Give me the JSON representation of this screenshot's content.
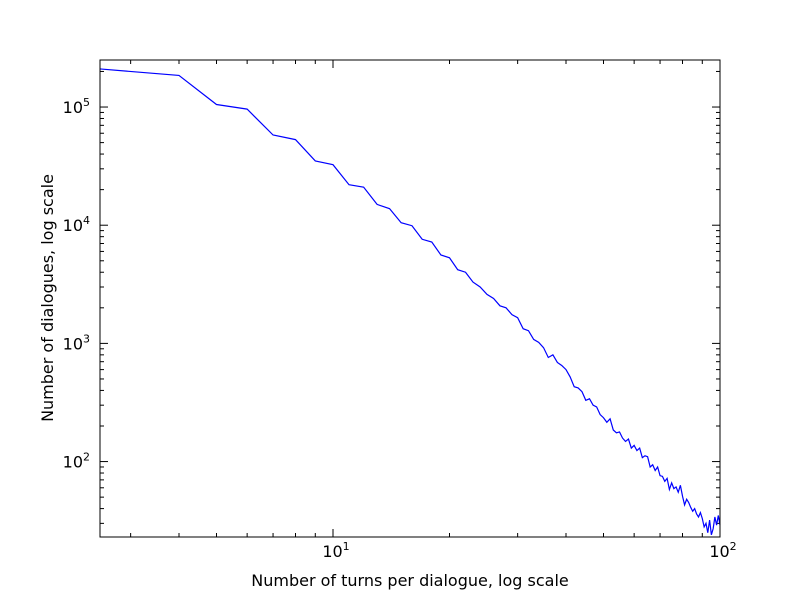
{
  "chart_data": {
    "type": "line",
    "title": "",
    "xlabel": "Number of turns per dialogue, log scale",
    "ylabel": "Number of dialogues, log scale",
    "xscale": "log",
    "yscale": "log",
    "xlim": [
      2.5,
      100
    ],
    "ylim": [
      23,
      250000
    ],
    "grid": false,
    "legend": "none",
    "line_color": "#0000ff",
    "x_ticks": [
      {
        "value": 10,
        "base": "10",
        "exp": "1"
      },
      {
        "value": 100,
        "base": "10",
        "exp": "2"
      }
    ],
    "y_ticks": [
      {
        "value": 100,
        "base": "10",
        "exp": "2"
      },
      {
        "value": 1000,
        "base": "10",
        "exp": "3"
      },
      {
        "value": 10000,
        "base": "10",
        "exp": "4"
      },
      {
        "value": 100000,
        "base": "10",
        "exp": "5"
      }
    ],
    "series": [
      {
        "x": [
          2.5,
          4,
          5,
          6,
          7,
          8,
          9,
          10,
          11,
          12,
          13,
          14,
          15,
          16,
          17,
          18,
          19,
          20,
          21,
          22,
          23,
          24,
          25,
          26,
          27,
          28,
          29,
          30,
          31,
          32,
          33,
          34,
          35,
          36,
          37,
          38,
          39,
          40,
          41,
          42,
          43,
          44,
          45,
          46,
          47,
          48,
          49,
          50,
          51,
          52,
          53,
          54,
          55,
          56,
          57,
          58,
          59,
          60,
          61,
          62,
          63,
          64,
          65,
          66,
          67,
          68,
          69,
          70,
          71,
          72,
          73,
          74,
          75,
          76,
          77,
          78,
          79,
          80,
          81,
          82,
          83,
          84,
          85,
          86,
          87,
          88,
          89,
          90,
          91,
          92,
          93,
          94,
          95,
          96,
          97,
          98,
          99,
          100
        ],
        "y": [
          210000,
          185000,
          105000,
          96000,
          58000,
          53000,
          35000,
          32500,
          22000,
          21000,
          15000,
          13800,
          10500,
          9900,
          7600,
          7200,
          5600,
          5300,
          4200,
          4000,
          3300,
          3000,
          2600,
          2400,
          2080,
          2000,
          1750,
          1650,
          1330,
          1280,
          1080,
          1020,
          920,
          760,
          800,
          690,
          650,
          600,
          520,
          430,
          420,
          390,
          330,
          340,
          300,
          290,
          250,
          235,
          215,
          230,
          185,
          175,
          178,
          158,
          148,
          155,
          130,
          137,
          124,
          130,
          108,
          112,
          110,
          90,
          94,
          84,
          90,
          76,
          75,
          68,
          72,
          58,
          66,
          59,
          61,
          55,
          63,
          51,
          43,
          48,
          45,
          41,
          38,
          40,
          36,
          34,
          37,
          33,
          28,
          30,
          25,
          32,
          24,
          27,
          34,
          29,
          35,
          29
        ]
      }
    ]
  }
}
